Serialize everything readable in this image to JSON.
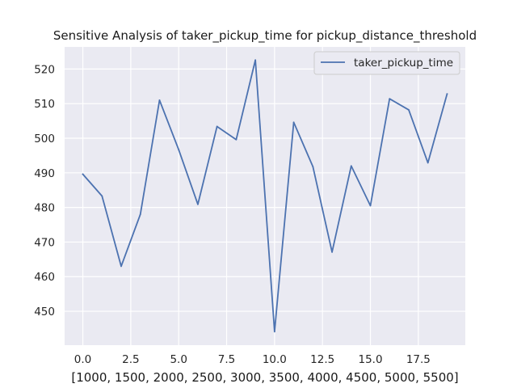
{
  "chart_data": {
    "type": "line",
    "title": "Sensitive Analysis of taker_pickup_time for pickup_distance_threshold",
    "xlabel": "[1000, 1500, 2000, 2500, 3000, 3500, 4000, 4500, 5000, 5500]",
    "ylabel": "",
    "xlim": [
      -0.95,
      19.95
    ],
    "ylim": [
      440.2,
      526.4
    ],
    "x_ticks": [
      0.0,
      2.5,
      5.0,
      7.5,
      10.0,
      12.5,
      15.0,
      17.5
    ],
    "x_tick_labels": [
      "0.0",
      "2.5",
      "5.0",
      "7.5",
      "10.0",
      "12.5",
      "15.0",
      "17.5"
    ],
    "y_ticks": [
      450,
      460,
      470,
      480,
      490,
      500,
      510,
      520
    ],
    "y_tick_labels": [
      "450",
      "460",
      "470",
      "480",
      "490",
      "500",
      "510",
      "520"
    ],
    "grid": true,
    "legend": "top-right",
    "series": [
      {
        "name": "taker_pickup_time",
        "color": "#4c72b0",
        "x": [
          0,
          1,
          2,
          3,
          4,
          5,
          6,
          7,
          8,
          9,
          10,
          11,
          12,
          13,
          14,
          15,
          16,
          17,
          18,
          19
        ],
        "values": [
          489.6,
          483.3,
          463.0,
          478.0,
          511.0,
          496.7,
          480.9,
          503.4,
          499.6,
          522.6,
          444.1,
          504.6,
          491.8,
          467.1,
          492.0,
          480.5,
          511.4,
          508.2,
          492.9,
          512.8
        ]
      }
    ]
  }
}
